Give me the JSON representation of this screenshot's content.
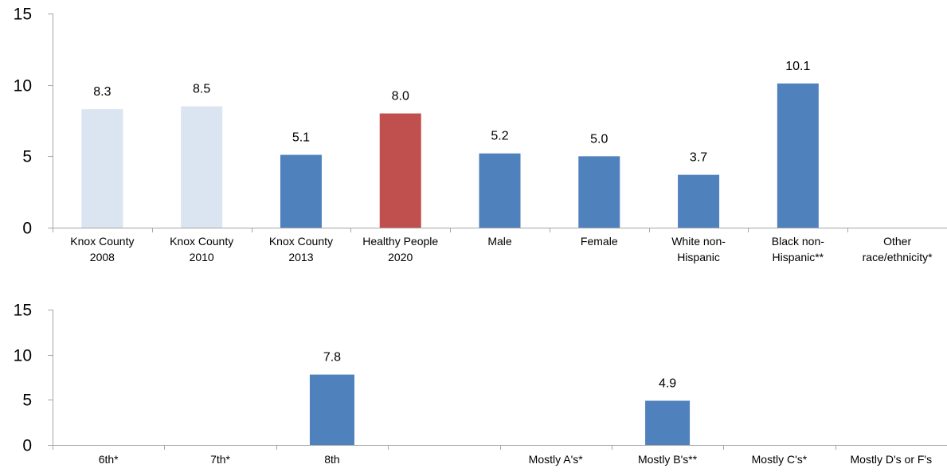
{
  "colors": {
    "previous_years": "#dbe5f1",
    "current": "#4f81bd",
    "target": "#c0504d",
    "axis": "#a6a6a6"
  },
  "chart_data": [
    {
      "type": "bar",
      "categories": [
        [
          "Knox County",
          "2008"
        ],
        [
          "Knox County",
          "2010"
        ],
        [
          "Knox County",
          "2013"
        ],
        [
          "Healthy People",
          "2020"
        ],
        [
          "Male"
        ],
        [
          "Female"
        ],
        [
          "White non-",
          "Hispanic"
        ],
        [
          "Black non-",
          "Hispanic**"
        ],
        [
          "Other",
          "race/ethnicity*"
        ]
      ],
      "values": [
        8.3,
        8.5,
        5.1,
        8.0,
        5.2,
        5.0,
        3.7,
        10.1,
        null
      ],
      "value_labels": [
        "8.3",
        "8.5",
        "5.1",
        "8.0",
        "5.2",
        "5.0",
        "3.7",
        "10.1",
        ""
      ],
      "bar_colors": [
        "previous_years",
        "previous_years",
        "current",
        "target",
        "current",
        "current",
        "current",
        "current",
        "current"
      ],
      "ylim": [
        0,
        15
      ],
      "yticks": [
        0,
        5,
        10,
        15
      ],
      "grid": false
    },
    {
      "type": "bar",
      "categories": [
        [
          "6th*"
        ],
        [
          "7th*"
        ],
        [
          "8th"
        ],
        [
          ""
        ],
        [
          "Mostly A's*"
        ],
        [
          "Mostly B's**"
        ],
        [
          "Mostly C's*"
        ],
        [
          "Mostly D's or F's"
        ]
      ],
      "values": [
        null,
        null,
        7.8,
        null,
        null,
        4.9,
        null,
        null
      ],
      "value_labels": [
        "",
        "",
        "7.8",
        "",
        "",
        "4.9",
        "",
        ""
      ],
      "bar_colors": [
        "current",
        "current",
        "current",
        "current",
        "current",
        "current",
        "current",
        "current"
      ],
      "ylim": [
        0,
        15
      ],
      "yticks": [
        0,
        5,
        10,
        15
      ],
      "grid": false
    }
  ]
}
